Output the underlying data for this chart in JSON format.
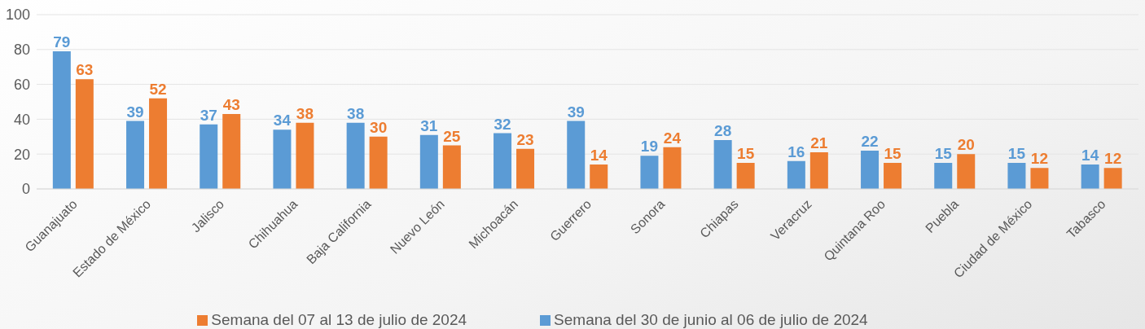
{
  "chart_data": {
    "type": "bar",
    "categories": [
      "Guanajuato",
      "Estado de México",
      "Jalisco",
      "Chihuahua",
      "Baja California",
      "Nuevo León",
      "Michoacán",
      "Guerrero",
      "Sonora",
      "Chiapas",
      "Veracruz",
      "Quintana Roo",
      "Puebla",
      "Ciudad de México",
      "Tabasco"
    ],
    "series": [
      {
        "name": "Semana del 30 de junio al 06 de julio de 2024",
        "color": "#5b9bd5",
        "values": [
          79,
          39,
          37,
          34,
          38,
          31,
          32,
          39,
          19,
          28,
          16,
          22,
          15,
          15,
          14
        ]
      },
      {
        "name": "Semana del 07 al 13 de julio de 2024",
        "color": "#ed7d31",
        "values": [
          63,
          52,
          43,
          38,
          30,
          25,
          23,
          14,
          24,
          15,
          21,
          15,
          20,
          12,
          12
        ]
      }
    ],
    "ylim": [
      0,
      100
    ],
    "yticks": [
      0,
      20,
      40,
      60,
      80,
      100
    ],
    "grid": "y",
    "legend": "bottom",
    "data_labels": true
  }
}
